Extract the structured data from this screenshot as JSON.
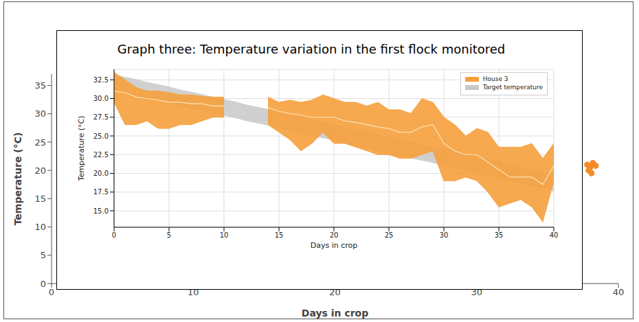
{
  "chart_data": [
    {
      "type": "line",
      "title": "Graph three: Temperature variation in the first flock monitored",
      "xlabel": "Days in crop",
      "ylabel": "Temperature (°C)",
      "x": [
        0,
        1,
        2,
        3,
        4,
        5,
        6,
        7,
        8,
        9,
        10,
        11,
        12,
        13,
        14,
        15,
        16,
        17,
        18,
        19,
        20,
        21,
        22,
        23,
        24,
        25,
        26,
        27,
        28,
        29,
        30,
        31,
        32,
        33,
        34,
        35,
        36,
        37,
        38,
        39,
        40
      ],
      "xlim": [
        0,
        40
      ],
      "xticks": [
        0,
        5,
        10,
        15,
        20,
        25,
        30,
        35,
        40
      ],
      "ylim": [
        12.8,
        33.9
      ],
      "yticks": [
        {
          "value": 15,
          "label": "15.0"
        },
        17.5,
        {
          "value": 20,
          "label": "20.0"
        },
        22.5,
        {
          "value": 25,
          "label": "25.0"
        },
        27.5,
        {
          "value": 30,
          "label": "30.0"
        },
        32.5
      ],
      "grid": true,
      "legend": "upper right",
      "series": [
        {
          "name": "House 3",
          "color": "#f5a03c",
          "values": [
            31,
            30.8,
            30.2,
            30,
            29.8,
            29.5,
            29.5,
            29.3,
            29.3,
            29,
            29,
            null,
            null,
            null,
            28.8,
            28.3,
            28,
            27.8,
            27.5,
            27.5,
            27.5,
            27,
            26.8,
            26.5,
            26.2,
            26,
            25.5,
            25.5,
            26.2,
            26.5,
            24,
            23,
            22.5,
            22.5,
            21.5,
            20.5,
            19.5,
            19.5,
            19.5,
            18.5,
            21
          ],
          "low": [
            29.5,
            26.5,
            26.5,
            27,
            26,
            26,
            26.5,
            26.5,
            27,
            27.5,
            27.5,
            null,
            null,
            null,
            26.5,
            25.5,
            24.5,
            23,
            24,
            25.5,
            24,
            24,
            23.5,
            23,
            22.5,
            22.5,
            22,
            22,
            22.5,
            23,
            19,
            19,
            19.5,
            19,
            17.5,
            15.5,
            16,
            16.5,
            15.5,
            13.5,
            19
          ],
          "high": [
            33.5,
            32.5,
            31.5,
            31,
            31,
            30.8,
            30.5,
            30.5,
            30.3,
            30.2,
            30.2,
            null,
            null,
            null,
            30.2,
            29.5,
            29.8,
            29.5,
            29.8,
            30.5,
            30,
            29.5,
            29.5,
            29,
            29.5,
            28.5,
            28.5,
            28,
            30,
            29.5,
            27.5,
            26.5,
            25,
            26,
            25.5,
            23.5,
            23.5,
            23.5,
            24,
            22,
            24
          ]
        },
        {
          "name": "Target temperature",
          "color": "#c8c8c8",
          "low": [
            31,
            30.7,
            30.4,
            30,
            29.7,
            29.4,
            29,
            28.7,
            28.4,
            28,
            27.7,
            27.4,
            27,
            26.7,
            26.4,
            26,
            25.7,
            25.4,
            25,
            24.7,
            24.4,
            24,
            23.7,
            23.4,
            23,
            22.7,
            22.4,
            22,
            21.7,
            21.4,
            21,
            20.7,
            20.4,
            20,
            19.7,
            19.4,
            19,
            18.6,
            18.3,
            18,
            17.6
          ],
          "high": [
            33.2,
            32.9,
            32.6,
            32.2,
            31.9,
            31.6,
            31.2,
            30.9,
            30.6,
            30.2,
            29.9,
            29.6,
            29.2,
            28.9,
            28.6,
            28.2,
            27.9,
            27.6,
            27.2,
            26.9,
            26.6,
            26.2,
            25.9,
            25.6,
            25.2,
            24.9,
            24.6,
            24.2,
            23.9,
            23.6,
            23.2,
            22.9,
            22.6,
            22.2,
            21.9,
            21.6,
            21.2,
            20.8,
            20.5,
            20.2,
            19.8
          ]
        }
      ]
    },
    {
      "type": "scatter",
      "xlabel": "Days in crop",
      "ylabel": "Temperature (°C)",
      "xlim": [
        0,
        40
      ],
      "xticks": [
        0,
        10,
        20,
        30,
        40
      ],
      "ylim": [
        0,
        37
      ],
      "yticks": [
        0,
        5,
        10,
        15,
        20,
        25,
        30,
        35
      ],
      "grid": false,
      "series": [
        {
          "color": "#f28c28",
          "x": [
            37.8,
            38,
            38.2,
            38.4,
            37.9,
            38.1
          ],
          "values": [
            21,
            20.5,
            21.3,
            20.8,
            20,
            19.5
          ]
        }
      ]
    }
  ]
}
